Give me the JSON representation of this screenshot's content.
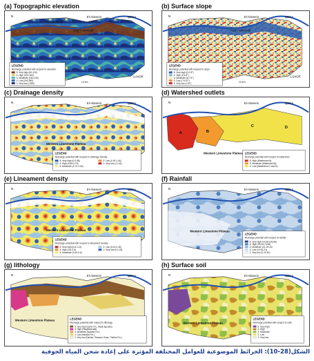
{
  "figure": {
    "caption": "الشكل(28-10): الخرائط الموضوعية للعوامل المختلفة المؤثرة على إعادة شحن المياه الجوفية",
    "common_labels": {
      "place_el_alamein": "El-Alamein",
      "place_qena": "QENA",
      "place_nag_hammadi": "Nag' Hammadi",
      "place_luxor": "LUXOR",
      "place_plateau": "Western Limestone Plateau",
      "place_el_ghoraina": "El-Ghoraina",
      "north": "N",
      "scale": "10 km",
      "tick_x1": "32°15'0\"E",
      "tick_x2": "32°30'0\"E",
      "tick_x3": "32°45'0\"E"
    },
    "panels": [
      {
        "title": "(a) Topographic elevation",
        "legend_title": "LEGEND",
        "legend_subtitle": "Recharge potential with respect to elevation",
        "items": [
          {
            "label": "5: Very high (40-120)",
            "color": "#7a3b1a"
          },
          {
            "label": "4: High (120-160)",
            "color": "#d9d070"
          },
          {
            "label": "3: Moderate (160-240)",
            "color": "#4bb0a8"
          },
          {
            "label": "2: Low (240-360)",
            "color": "#2b6fb8"
          },
          {
            "label": "1: Very low (>360)",
            "color": "#1a2f7a"
          }
        ]
      },
      {
        "title": "(b) Surface slope",
        "legend_title": "LEGEND",
        "legend_subtitle": "Recharge potential with respect to slope",
        "items": [
          {
            "label": "5: Very high (0-2.5°)",
            "color": "#2c5fb0"
          },
          {
            "label": "4: High (2.5-5°)",
            "color": "#7fb0d8"
          },
          {
            "label": "3: Moderate (5-7.5°)",
            "color": "#f0ecb0"
          },
          {
            "label": "2: Low (7.5-10°)",
            "color": "#ef8a3c"
          },
          {
            "label": "1: Very low (>10°)",
            "color": "#c8262a"
          }
        ]
      },
      {
        "title": "(c) Drainage density",
        "legend_title": "LEGEND",
        "legend_subtitle": "Recharge potential with respect to drainage density",
        "items": [
          {
            "label": "5: Very high (0-0.58)",
            "color": "#2f5fb5"
          },
          {
            "label": "4: High (0.58-0.73)",
            "color": "#9fc3e3"
          },
          {
            "label": "3: Moderate (0.73-1.09)",
            "color": "#f2ea96"
          },
          {
            "label": "2: Low (1.09-1.44)",
            "color": "#ee8f3a"
          },
          {
            "label": "1: Very low (>1.44)",
            "color": "#c8262a"
          }
        ]
      },
      {
        "title": "(d) Watershed outlets",
        "legend_title": "LEGEND",
        "legend_subtitle": "Recharge potential with respect to watershed",
        "items": [
          {
            "label": "5: High (Watershed A)",
            "color": "#d92a1e"
          },
          {
            "label": "3: Moderate (Watershed B)",
            "color": "#f29a2e"
          },
          {
            "label": "1: Low (Watershed C and D)",
            "color": "#f2e24a"
          }
        ],
        "watershed_letters": [
          "A",
          "B",
          "C",
          "D"
        ]
      },
      {
        "title": "(e) Lineament density",
        "legend_title": "LEGEND",
        "legend_subtitle": "Recharge potential with respect to lineament density",
        "items": [
          {
            "label": "5: Very high (0.8-1.21)",
            "color": "#c8262a"
          },
          {
            "label": "4: High (0.6-0.8)",
            "color": "#ee8f3a"
          },
          {
            "label": "3: Moderate (0.45-0.6)",
            "color": "#f2ea6a"
          },
          {
            "label": "2: Low (0.24-0.45)",
            "color": "#9fc3e3"
          },
          {
            "label": "1: Very low (0-0.24)",
            "color": "#2f5fb5"
          }
        ]
      },
      {
        "title": "(f) Rainfall",
        "legend_title": "LEGEND",
        "legend_subtitle": "Recharge potential with respect to rainfall",
        "items": [
          {
            "label": "5: Very high (74.56-109.66)",
            "color": "#1e3f8c"
          },
          {
            "label": "4: High (29.44-74.56)",
            "color": "#4f7fc0"
          },
          {
            "label": "3: Moderate (21-29.44)",
            "color": "#8db2da"
          },
          {
            "label": "2: Low (10.51-21)",
            "color": "#c6d8ec"
          },
          {
            "label": "1: Very low (0-10.51)",
            "color": "#eef2f8"
          }
        ]
      },
      {
        "title": "(g) lithology",
        "legend_title": "LEGEND",
        "legend_subtitle": "Recharge potential with respect to lithology",
        "items": [
          {
            "label": "5: Very high (Qena Fm., Wadi deposits)",
            "color": "#8a5a2b"
          },
          {
            "label": "4: High (Fanglomerate)",
            "color": "#d83a8a"
          },
          {
            "label": "3: Moderate (Issawia Fm.)",
            "color": "#e7a14a"
          },
          {
            "label": "2: Low (Issawia Fm.)",
            "color": "#e6cf6a"
          },
          {
            "label": "1: Very low (Dakhla, Tarawan, Esna, Thebes Fm.)",
            "color": "#f4eec6"
          }
        ]
      },
      {
        "title": "(h) Surface soil",
        "legend_title": "LEGEND",
        "legend_subtitle": "Recharge potential with respect to soils",
        "items": [
          {
            "label": "5: Very high",
            "color": "#7a4a9a"
          },
          {
            "label": "4: High",
            "color": "#c48a2a"
          },
          {
            "label": "3: Moderate",
            "color": "#8fbf4a"
          },
          {
            "label": "2: Low",
            "color": "#e8e26a"
          },
          {
            "label": "1: Very low",
            "color": "#f3efc8"
          }
        ]
      }
    ]
  }
}
